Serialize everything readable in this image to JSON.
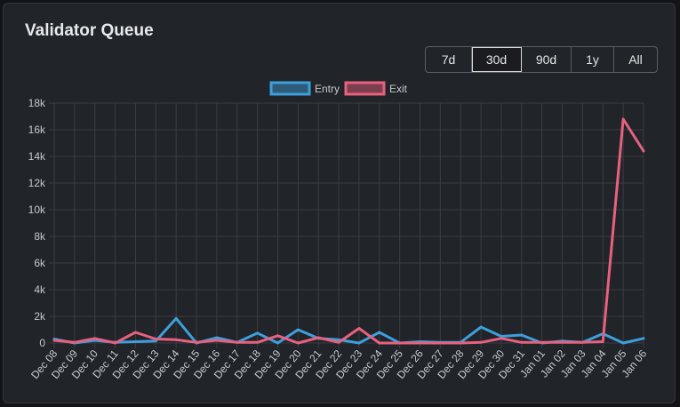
{
  "header": {
    "title": "Validator Queue"
  },
  "ranges": [
    {
      "label": "7d",
      "active": false
    },
    {
      "label": "30d",
      "active": true
    },
    {
      "label": "90d",
      "active": false
    },
    {
      "label": "1y",
      "active": false
    },
    {
      "label": "All",
      "active": false
    }
  ],
  "colors": {
    "entry": "#3d9fdb",
    "exit": "#e8617f",
    "grid": "#3a3d43",
    "tick": "#c7c9cc"
  },
  "chart_data": {
    "type": "line",
    "title": "",
    "xlabel": "",
    "ylabel": "",
    "ylim": [
      0,
      18000
    ],
    "yticks": [
      0,
      2000,
      4000,
      6000,
      8000,
      10000,
      12000,
      14000,
      16000,
      18000
    ],
    "ytick_labels": [
      "0",
      "2k",
      "4k",
      "6k",
      "8k",
      "10k",
      "12k",
      "14k",
      "16k",
      "18k"
    ],
    "grid": true,
    "legend": "top-center",
    "categories": [
      "Dec 08",
      "Dec 09",
      "Dec 10",
      "Dec 11",
      "Dec 12",
      "Dec 13",
      "Dec 14",
      "Dec 15",
      "Dec 16",
      "Dec 17",
      "Dec 18",
      "Dec 19",
      "Dec 20",
      "Dec 21",
      "Dec 22",
      "Dec 23",
      "Dec 24",
      "Dec 25",
      "Dec 26",
      "Dec 27",
      "Dec 28",
      "Dec 29",
      "Dec 30",
      "Dec 31",
      "Jan 01",
      "Jan 02",
      "Jan 03",
      "Jan 04",
      "Jan 05",
      "Jan 06"
    ],
    "series": [
      {
        "name": "Entry",
        "values": [
          300,
          0,
          200,
          50,
          100,
          150,
          1850,
          0,
          400,
          50,
          750,
          0,
          1000,
          350,
          250,
          0,
          800,
          0,
          100,
          50,
          50,
          1200,
          500,
          600,
          0,
          150,
          50,
          700,
          0,
          350
        ]
      },
      {
        "name": "Exit",
        "values": [
          200,
          50,
          350,
          0,
          800,
          300,
          250,
          50,
          200,
          50,
          50,
          550,
          0,
          400,
          50,
          1100,
          0,
          0,
          0,
          0,
          0,
          50,
          350,
          50,
          50,
          50,
          50,
          100,
          16800,
          14400
        ]
      }
    ]
  }
}
